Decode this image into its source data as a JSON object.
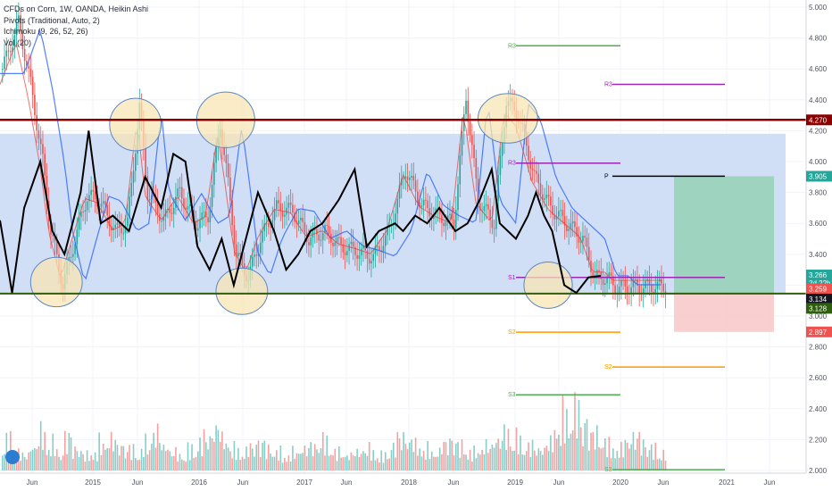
{
  "legend": {
    "title": "CFDs on Corn, 1W, OANDA, Heikin Ashi",
    "pivots": "Pivots (Traditional, Auto, 2)",
    "ichimoku": "Ichimoku (9, 26, 52, 26)",
    "vol": "Vol (20)"
  },
  "colors": {
    "range_box": "#c9d9f5",
    "target_box": "#8ccfae",
    "stop_box": "#f9c7c7",
    "resistance": "#8b0000",
    "support": "#2e5e0e",
    "up_candle": "#26a69a",
    "down_candle": "#ef5350",
    "oscillator": "#000000",
    "ellipse_fill": "#f7e6b4",
    "ellipse_stroke": "#5a86c7"
  },
  "chart_data": {
    "type": "candlestick",
    "symbol": "CFDs on Corn, 1W, OANDA, Heikin Ashi",
    "x_ticks": [
      "Jun",
      "2015",
      "Jun",
      "2016",
      "Jun",
      "2017",
      "Jun",
      "2018",
      "Jun",
      "2019",
      "Jun",
      "2020",
      "Jun",
      "2021",
      "Jun"
    ],
    "y_ticks": [
      "5.000",
      "4.800",
      "4.600",
      "4.400",
      "4.200",
      "4.000",
      "3.800",
      "3.600",
      "3.400",
      "3.200",
      "3.000",
      "2.800",
      "2.600",
      "2.400",
      "2.200",
      "2.000"
    ],
    "ylim": [
      2.0,
      5.0
    ],
    "levels": {
      "resistance": 4.27,
      "support": 3.145,
      "range_top": 4.18,
      "range_bottom": 3.145,
      "target_top": 3.905,
      "stop_bottom": 2.897
    },
    "price_badges": [
      {
        "label": "4.270",
        "value": 4.27,
        "color": "#8b0000"
      },
      {
        "label": "3.905",
        "value": 3.905,
        "color": "#26a69a"
      },
      {
        "label": "3.266",
        "value": 3.266,
        "color": "#26a69a"
      },
      {
        "label": "2d 22h",
        "value": 3.215,
        "color": "#26a69a"
      },
      {
        "label": "3.259",
        "value": 3.176,
        "color": "#ef5350"
      },
      {
        "label": "3.134",
        "value": 3.11,
        "color": "#131722"
      },
      {
        "label": "3.128",
        "value": 3.05,
        "color": "#2e5e0e"
      },
      {
        "label": "2.897",
        "value": 2.897,
        "color": "#ef5350"
      }
    ],
    "pivot_levels": [
      {
        "label": "R3",
        "value": 4.75,
        "color": "#4caf50"
      },
      {
        "label": "R3",
        "value": 4.5,
        "color": "#9c27b0"
      },
      {
        "label": "R3",
        "value": 3.99,
        "color": "#9c27b0"
      },
      {
        "label": "P",
        "value": 3.905,
        "color": "#000000"
      },
      {
        "label": "S1",
        "value": 3.25,
        "color": "#9c27b0"
      },
      {
        "label": "S2",
        "value": 2.895,
        "color": "#ff9800"
      },
      {
        "label": "S2",
        "value": 2.67,
        "color": "#ff9800"
      },
      {
        "label": "S3",
        "value": 2.49,
        "color": "#4caf50"
      },
      {
        "label": "S3",
        "value": 2.005,
        "color": "#4caf50"
      }
    ],
    "price_path": [
      [
        0.0,
        4.6
      ],
      [
        0.02,
        4.9
      ],
      [
        0.035,
        4.5
      ],
      [
        0.05,
        4.0
      ],
      [
        0.06,
        3.55
      ],
      [
        0.075,
        3.2
      ],
      [
        0.09,
        3.5
      ],
      [
        0.105,
        3.78
      ],
      [
        0.12,
        3.75
      ],
      [
        0.13,
        3.65
      ],
      [
        0.14,
        3.55
      ],
      [
        0.155,
        3.6
      ],
      [
        0.17,
        4.35
      ],
      [
        0.18,
        3.8
      ],
      [
        0.2,
        3.62
      ],
      [
        0.22,
        3.8
      ],
      [
        0.24,
        3.6
      ],
      [
        0.255,
        3.65
      ],
      [
        0.27,
        4.25
      ],
      [
        0.28,
        3.85
      ],
      [
        0.29,
        3.4
      ],
      [
        0.305,
        3.25
      ],
      [
        0.32,
        3.5
      ],
      [
        0.34,
        3.7
      ],
      [
        0.36,
        3.68
      ],
      [
        0.38,
        3.5
      ],
      [
        0.4,
        3.55
      ],
      [
        0.42,
        3.45
      ],
      [
        0.44,
        3.42
      ],
      [
        0.46,
        3.38
      ],
      [
        0.48,
        3.55
      ],
      [
        0.5,
        3.95
      ],
      [
        0.52,
        3.72
      ],
      [
        0.54,
        3.65
      ],
      [
        0.56,
        3.6
      ],
      [
        0.575,
        4.42
      ],
      [
        0.59,
        3.75
      ],
      [
        0.61,
        3.6
      ],
      [
        0.625,
        4.4
      ],
      [
        0.64,
        4.3
      ],
      [
        0.66,
        3.9
      ],
      [
        0.68,
        3.7
      ],
      [
        0.7,
        3.6
      ],
      [
        0.72,
        3.5
      ],
      [
        0.735,
        3.25
      ],
      [
        0.75,
        3.25
      ],
      [
        0.76,
        3.19
      ]
    ],
    "oscillator_path": [
      [
        0.0,
        3.62
      ],
      [
        0.015,
        3.15
      ],
      [
        0.03,
        3.7
      ],
      [
        0.05,
        4.0
      ],
      [
        0.065,
        3.55
      ],
      [
        0.08,
        3.4
      ],
      [
        0.1,
        3.8
      ],
      [
        0.11,
        4.2
      ],
      [
        0.125,
        3.6
      ],
      [
        0.14,
        3.65
      ],
      [
        0.16,
        3.55
      ],
      [
        0.18,
        3.9
      ],
      [
        0.2,
        3.7
      ],
      [
        0.215,
        4.05
      ],
      [
        0.23,
        4.0
      ],
      [
        0.245,
        3.45
      ],
      [
        0.26,
        3.3
      ],
      [
        0.275,
        3.5
      ],
      [
        0.29,
        3.2
      ],
      [
        0.305,
        3.5
      ],
      [
        0.32,
        3.8
      ],
      [
        0.34,
        3.55
      ],
      [
        0.355,
        3.3
      ],
      [
        0.37,
        3.4
      ],
      [
        0.385,
        3.55
      ],
      [
        0.4,
        3.6
      ],
      [
        0.42,
        3.75
      ],
      [
        0.44,
        3.95
      ],
      [
        0.455,
        3.45
      ],
      [
        0.47,
        3.55
      ],
      [
        0.49,
        3.6
      ],
      [
        0.5,
        3.55
      ],
      [
        0.515,
        3.65
      ],
      [
        0.53,
        3.6
      ],
      [
        0.545,
        3.7
      ],
      [
        0.565,
        3.55
      ],
      [
        0.58,
        3.6
      ],
      [
        0.595,
        3.75
      ],
      [
        0.61,
        3.95
      ],
      [
        0.62,
        3.6
      ],
      [
        0.64,
        3.5
      ],
      [
        0.655,
        3.65
      ],
      [
        0.665,
        3.8
      ],
      [
        0.675,
        3.65
      ],
      [
        0.685,
        3.55
      ],
      [
        0.7,
        3.2
      ],
      [
        0.715,
        3.15
      ],
      [
        0.73,
        3.25
      ],
      [
        0.745,
        3.26
      ]
    ],
    "ellipses": [
      {
        "cx": 0.07,
        "cy": 3.22,
        "rx": 0.032,
        "ry": 0.16
      },
      {
        "cx": 0.168,
        "cy": 4.24,
        "rx": 0.032,
        "ry": 0.17
      },
      {
        "cx": 0.28,
        "cy": 4.27,
        "rx": 0.036,
        "ry": 0.18
      },
      {
        "cx": 0.3,
        "cy": 3.16,
        "rx": 0.032,
        "ry": 0.15
      },
      {
        "cx": 0.63,
        "cy": 4.28,
        "rx": 0.037,
        "ry": 0.16
      },
      {
        "cx": 0.68,
        "cy": 3.2,
        "rx": 0.03,
        "ry": 0.15
      }
    ],
    "volume_profile": [
      0.5,
      0.35,
      0.25,
      0.4,
      0.6,
      0.45,
      0.3,
      0.55,
      0.35,
      0.25,
      0.3,
      0.45,
      0.5,
      0.4,
      0.35,
      0.3,
      0.45,
      0.6,
      0.4,
      0.3,
      0.25,
      0.35,
      0.45,
      0.55,
      0.7,
      0.5,
      0.35,
      0.3,
      0.4,
      0.45,
      0.35,
      0.3,
      0.25,
      0.3,
      0.35,
      0.4,
      0.5,
      0.45,
      0.3,
      0.25,
      0.3,
      0.35,
      0.3,
      0.25,
      0.4,
      0.55,
      0.5,
      0.4,
      0.35,
      0.3,
      0.45,
      0.5,
      0.4,
      0.3,
      0.35,
      0.4,
      0.5,
      0.6,
      0.55,
      0.45,
      0.4,
      0.35,
      0.45,
      0.7,
      0.9,
      1.0,
      0.8,
      0.6,
      0.5,
      0.4,
      0.35,
      0.5,
      0.55,
      0.45,
      0.35,
      0.3
    ]
  }
}
